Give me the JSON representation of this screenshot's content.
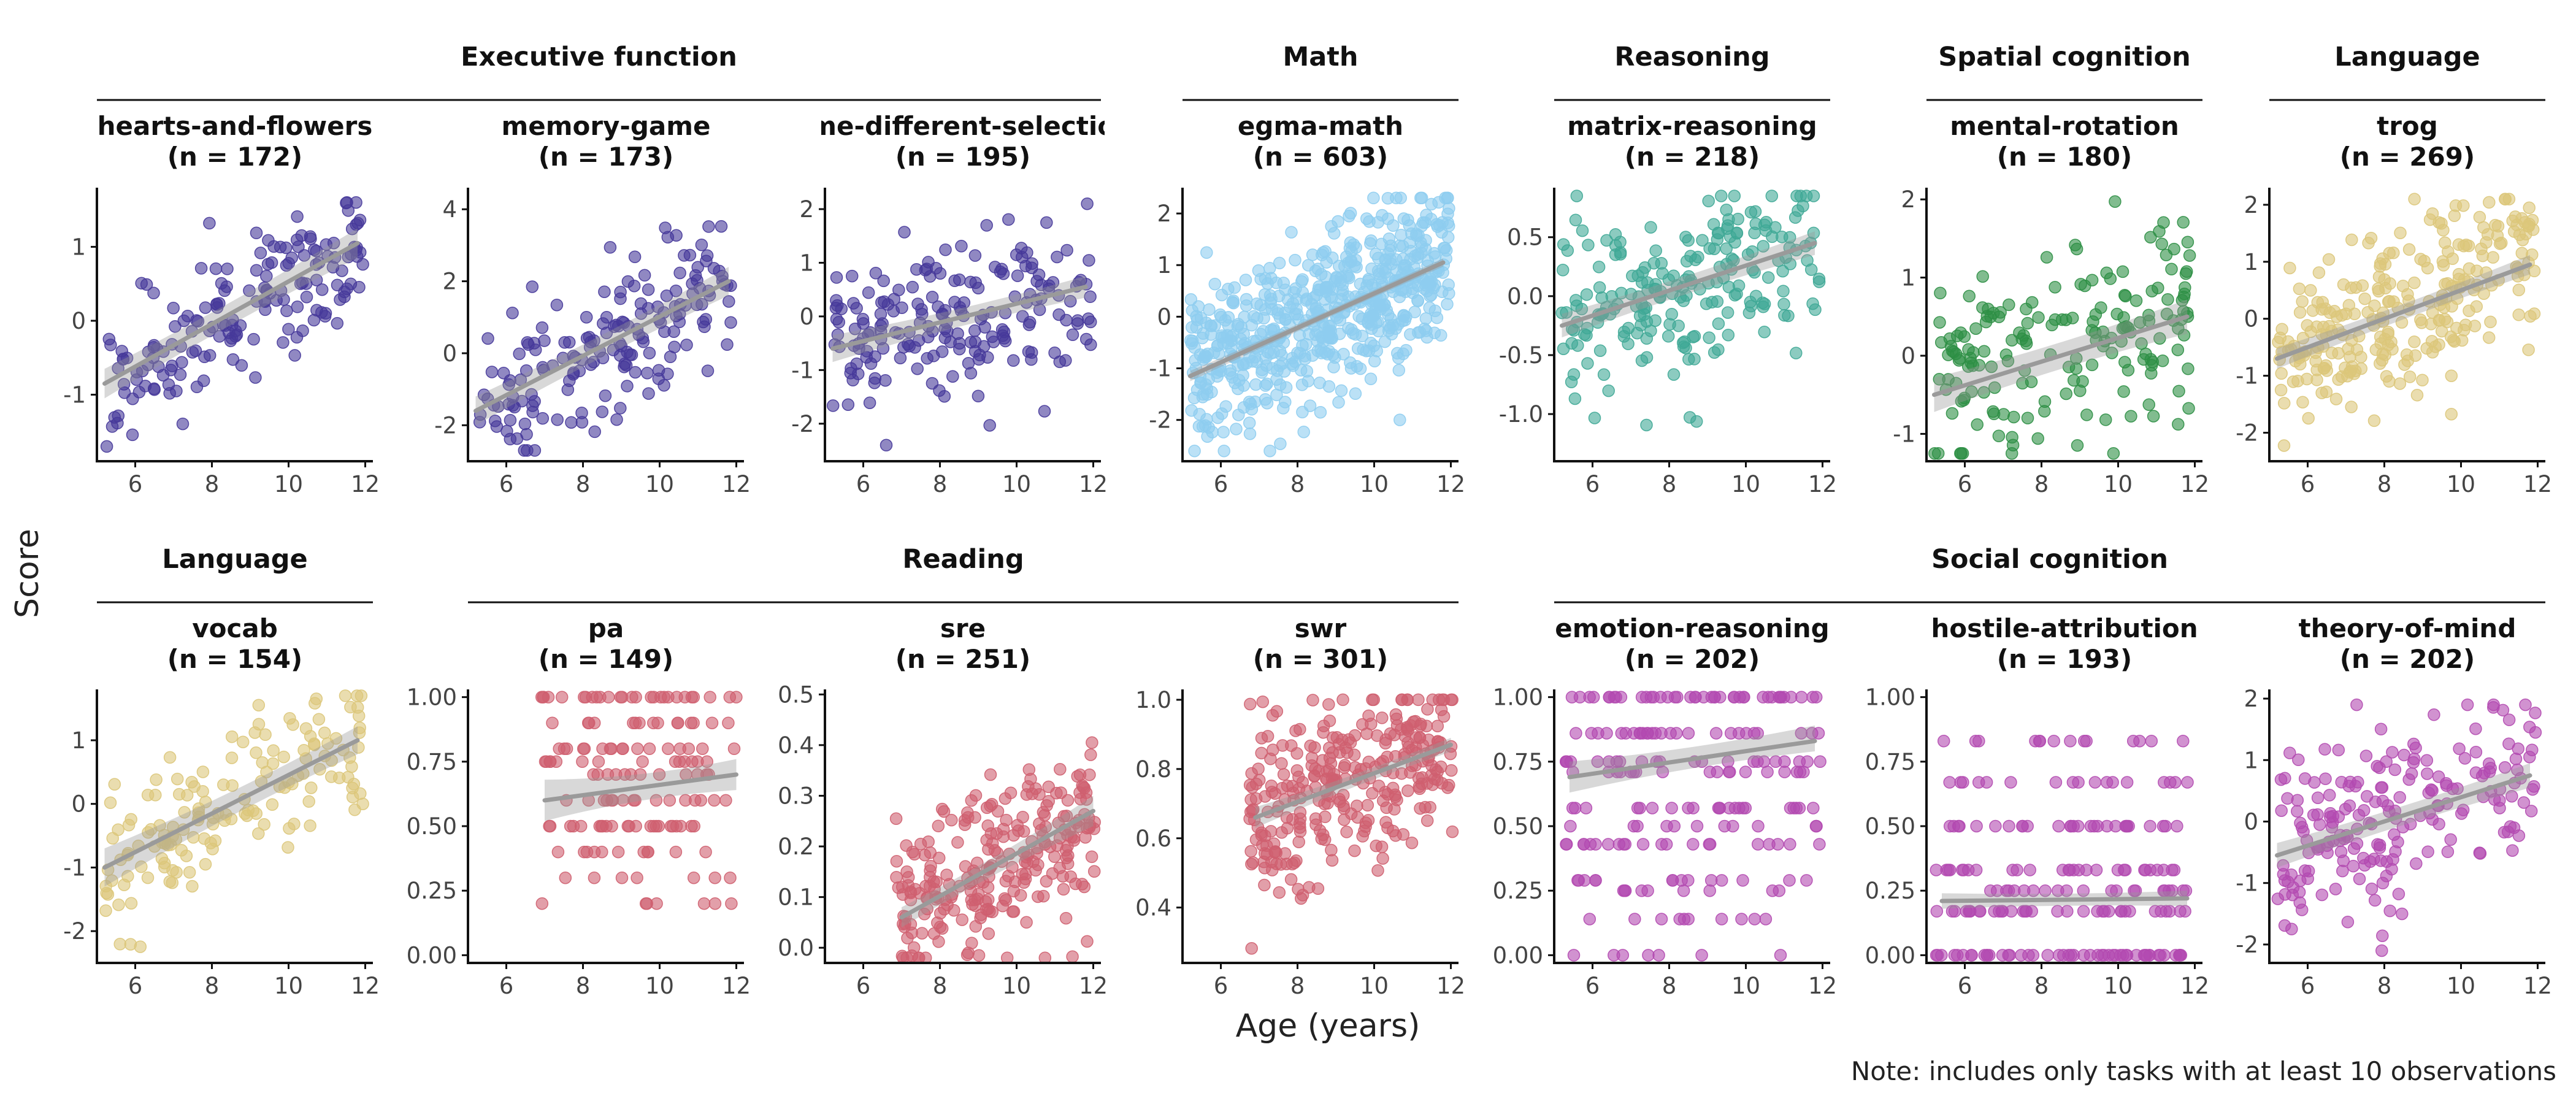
{
  "chart_data": {
    "type": "scatter",
    "xlabel": "Age (years)",
    "ylabel": "Score",
    "note": "Note: includes only tasks with at least 10 observations",
    "grid": false,
    "trend": "linear fit with confidence band",
    "colors": {
      "Executive function": "#46399a",
      "Math": "#8ecdf0",
      "Reasoning": "#3fa996",
      "Spatial cognition": "#2d8f45",
      "Language": "#dcc77a",
      "Reading": "#cf5f6f",
      "Social cognition": "#b34ab0",
      "fit": "#9a9a9a"
    },
    "groups": [
      {
        "row": 1,
        "label": "Executive function"
      },
      {
        "row": 1,
        "label": "Math"
      },
      {
        "row": 1,
        "label": "Reasoning"
      },
      {
        "row": 1,
        "label": "Spatial cognition"
      },
      {
        "row": 1,
        "label": "Language"
      },
      {
        "row": 2,
        "label": "Language"
      },
      {
        "row": 2,
        "label": "Reading"
      },
      {
        "row": 2,
        "label": "Social cognition"
      }
    ],
    "panels": [
      {
        "task": "hearts-and-flowers",
        "n_label": "(n = 172)",
        "n": 172,
        "group": "Executive function",
        "xlim": [
          5,
          12.2
        ],
        "ylim": [
          -1.9,
          1.8
        ],
        "yticks": [
          -1,
          0,
          1
        ],
        "yticklabels": [
          "-1",
          "0",
          "1"
        ],
        "xticks": [
          6,
          8,
          10,
          12
        ],
        "xticklabels": [
          "6",
          "8",
          "10",
          "12"
        ],
        "fit": {
          "x": [
            5.2,
            11.8
          ],
          "y": [
            -0.85,
            1.05
          ]
        },
        "band": {
          "lower": [
            -1.05,
            0.85
          ],
          "upper": [
            -0.65,
            1.25
          ]
        },
        "y_min": -1.7,
        "y_max": 1.6,
        "y_levels": null,
        "spread": 0.55
      },
      {
        "task": "memory-game",
        "n_label": "(n = 173)",
        "n": 173,
        "group": "Executive function",
        "xlim": [
          5,
          12.2
        ],
        "ylim": [
          -3.0,
          4.6
        ],
        "yticks": [
          -2,
          0,
          2,
          4
        ],
        "yticklabels": [
          "-2",
          "0",
          "2",
          "4"
        ],
        "xticks": [
          6,
          8,
          10,
          12
        ],
        "xticklabels": [
          "6",
          "8",
          "10",
          "12"
        ],
        "fit": {
          "x": [
            5.2,
            11.8
          ],
          "y": [
            -1.6,
            2.0
          ]
        },
        "band": {
          "lower": [
            -2.0,
            1.6
          ],
          "upper": [
            -1.2,
            2.4
          ]
        },
        "y_min": -2.7,
        "y_max": 4.2,
        "y_levels": null,
        "spread": 1.05
      },
      {
        "task": "ame-different-selection",
        "n_label": "(n = 195)",
        "n": 195,
        "group": "Executive function",
        "xlim": [
          5,
          12.2
        ],
        "ylim": [
          -2.7,
          2.4
        ],
        "yticks": [
          -2,
          -1,
          0,
          1,
          2
        ],
        "yticklabels": [
          "-2",
          "-1",
          "0",
          "1",
          "2"
        ],
        "xticks": [
          6,
          8,
          10,
          12
        ],
        "xticklabels": [
          "6",
          "8",
          "10",
          "12"
        ],
        "fit": {
          "x": [
            5.2,
            11.8
          ],
          "y": [
            -0.6,
            0.55
          ]
        },
        "band": {
          "lower": [
            -0.85,
            0.35
          ],
          "upper": [
            -0.35,
            0.75
          ]
        },
        "y_min": -2.4,
        "y_max": 2.1,
        "y_levels": null,
        "spread": 0.7
      },
      {
        "task": "egma-math",
        "n_label": "(n = 603)",
        "n": 603,
        "group": "Math",
        "xlim": [
          5,
          12.2
        ],
        "ylim": [
          -2.8,
          2.5
        ],
        "yticks": [
          -2,
          -1,
          0,
          1,
          2
        ],
        "yticklabels": [
          "-2",
          "-1",
          "0",
          "1",
          "2"
        ],
        "xticks": [
          6,
          8,
          10,
          12
        ],
        "xticklabels": [
          "6",
          "8",
          "10",
          "12"
        ],
        "fit": {
          "x": [
            5.2,
            11.8
          ],
          "y": [
            -1.15,
            1.05
          ]
        },
        "band": {
          "lower": [
            -1.25,
            0.97
          ],
          "upper": [
            -1.05,
            1.13
          ]
        },
        "y_min": -2.6,
        "y_max": 2.3,
        "y_levels": null,
        "spread": 0.75
      },
      {
        "task": "matrix-reasoning",
        "n_label": "(n = 218)",
        "n": 218,
        "group": "Reasoning",
        "xlim": [
          5,
          12.2
        ],
        "ylim": [
          -1.4,
          0.92
        ],
        "yticks": [
          -1.0,
          -0.5,
          0.0,
          0.5
        ],
        "yticklabels": [
          "-1.0",
          "-0.5",
          "0.0",
          "0.5"
        ],
        "xticks": [
          6,
          8,
          10,
          12
        ],
        "xticklabels": [
          "6",
          "8",
          "10",
          "12"
        ],
        "fit": {
          "x": [
            5.2,
            11.8
          ],
          "y": [
            -0.25,
            0.45
          ]
        },
        "band": {
          "lower": [
            -0.35,
            0.35
          ],
          "upper": [
            -0.15,
            0.55
          ]
        },
        "y_min": -1.25,
        "y_max": 0.85,
        "y_levels": null,
        "spread": 0.38
      },
      {
        "task": "mental-rotation",
        "n_label": "(n = 180)",
        "n": 180,
        "group": "Spatial cognition",
        "xlim": [
          5,
          12.2
        ],
        "ylim": [
          -1.35,
          2.15
        ],
        "yticks": [
          -1,
          0,
          1,
          2
        ],
        "yticklabels": [
          "-1",
          "0",
          "1",
          "2"
        ],
        "xticks": [
          6,
          8,
          10,
          12
        ],
        "xticklabels": [
          "6",
          "8",
          "10",
          "12"
        ],
        "fit": {
          "x": [
            5.2,
            11.8
          ],
          "y": [
            -0.5,
            0.5
          ]
        },
        "band": {
          "lower": [
            -0.72,
            0.28
          ],
          "upper": [
            -0.28,
            0.72
          ]
        },
        "y_min": -1.25,
        "y_max": 2.0,
        "y_levels": null,
        "spread": 0.6
      },
      {
        "task": "trog",
        "n_label": "(n = 269)",
        "n": 269,
        "group": "Language",
        "xlim": [
          5,
          12.2
        ],
        "ylim": [
          -2.5,
          2.3
        ],
        "yticks": [
          -2,
          -1,
          0,
          1,
          2
        ],
        "yticklabels": [
          "-2",
          "-1",
          "0",
          "1",
          "2"
        ],
        "xticks": [
          6,
          8,
          10,
          12
        ],
        "xticklabels": [
          "6",
          "8",
          "10",
          "12"
        ],
        "fit": {
          "x": [
            5.2,
            11.8
          ],
          "y": [
            -0.7,
            0.95
          ]
        },
        "band": {
          "lower": [
            -0.88,
            0.78
          ],
          "upper": [
            -0.52,
            1.12
          ]
        },
        "y_min": -2.4,
        "y_max": 2.1,
        "y_levels": null,
        "spread": 0.75
      },
      {
        "task": "vocab",
        "n_label": "(n = 154)",
        "n": 154,
        "group": "Language",
        "xlim": [
          5,
          12.2
        ],
        "ylim": [
          -2.5,
          1.8
        ],
        "yticks": [
          -2,
          -1,
          0,
          1
        ],
        "yticklabels": [
          "-2",
          "-1",
          "0",
          "1"
        ],
        "xticks": [
          6,
          8,
          10,
          12
        ],
        "xticklabels": [
          "6",
          "8",
          "10",
          "12"
        ],
        "fit": {
          "x": [
            5.2,
            11.8
          ],
          "y": [
            -1.0,
            1.0
          ]
        },
        "band": {
          "lower": [
            -1.3,
            0.78
          ],
          "upper": [
            -0.7,
            1.22
          ]
        },
        "y_min": -2.4,
        "y_max": 1.7,
        "y_levels": null,
        "spread": 0.6
      },
      {
        "task": "pa",
        "n_label": "(n = 149)",
        "n": 149,
        "group": "Reading",
        "xlim": [
          5,
          12.2
        ],
        "ylim": [
          -0.03,
          1.03
        ],
        "yticks": [
          0.0,
          0.25,
          0.5,
          0.75,
          1.0
        ],
        "yticklabels": [
          "0.00",
          "0.25",
          "0.50",
          "0.75",
          "1.00"
        ],
        "xticks": [
          6,
          8,
          10,
          12
        ],
        "xticklabels": [
          "6",
          "8",
          "10",
          "12"
        ],
        "fit": {
          "x": [
            7.0,
            12.0
          ],
          "y": [
            0.6,
            0.7
          ]
        },
        "band": {
          "lower": [
            0.52,
            0.64
          ],
          "upper": [
            0.68,
            0.76
          ]
        },
        "y_min": 0.0,
        "y_max": 1.0,
        "y_levels": [
          0.2,
          0.3,
          0.4,
          0.5,
          0.6,
          0.7,
          0.75,
          0.8,
          0.9,
          1.0
        ],
        "spread": 0.2
      },
      {
        "task": "sre",
        "n_label": "(n = 251)",
        "n": 251,
        "group": "Reading",
        "xlim": [
          5,
          12.2
        ],
        "ylim": [
          -0.03,
          0.51
        ],
        "yticks": [
          0.0,
          0.1,
          0.2,
          0.3,
          0.4,
          0.5
        ],
        "yticklabels": [
          "0.0",
          "0.1",
          "0.2",
          "0.3",
          "0.4",
          "0.5"
        ],
        "xticks": [
          6,
          8,
          10,
          12
        ],
        "xticklabels": [
          "6",
          "8",
          "10",
          "12"
        ],
        "fit": {
          "x": [
            7.0,
            12.0
          ],
          "y": [
            0.06,
            0.27
          ]
        },
        "band": {
          "lower": [
            0.04,
            0.24
          ],
          "upper": [
            0.08,
            0.3
          ]
        },
        "y_min": -0.02,
        "y_max": 0.49,
        "y_levels": null,
        "spread": 0.08
      },
      {
        "task": "swr",
        "n_label": "(n = 301)",
        "n": 301,
        "group": "Reading",
        "xlim": [
          5,
          12.2
        ],
        "ylim": [
          0.24,
          1.03
        ],
        "yticks": [
          0.4,
          0.6,
          0.8,
          1.0
        ],
        "yticklabels": [
          "0.4",
          "0.6",
          "0.8",
          "1.0"
        ],
        "xticks": [
          6,
          8,
          10,
          12
        ],
        "xticklabels": [
          "6",
          "8",
          "10",
          "12"
        ],
        "fit": {
          "x": [
            6.9,
            12.0
          ],
          "y": [
            0.66,
            0.87
          ]
        },
        "band": {
          "lower": [
            0.63,
            0.85
          ],
          "upper": [
            0.69,
            0.89
          ]
        },
        "y_min": 0.27,
        "y_max": 1.0,
        "y_levels": null,
        "spread": 0.13
      },
      {
        "task": "emotion-reasoning",
        "n_label": "(n = 202)",
        "n": 202,
        "group": "Social cognition",
        "xlim": [
          5,
          12.2
        ],
        "ylim": [
          -0.03,
          1.03
        ],
        "yticks": [
          0.0,
          0.25,
          0.5,
          0.75,
          1.0
        ],
        "yticklabels": [
          "0.00",
          "0.25",
          "0.50",
          "0.75",
          "1.00"
        ],
        "xticks": [
          6,
          8,
          10,
          12
        ],
        "xticklabels": [
          "6",
          "8",
          "10",
          "12"
        ],
        "fit": {
          "x": [
            5.4,
            11.8
          ],
          "y": [
            0.69,
            0.83
          ]
        },
        "band": {
          "lower": [
            0.63,
            0.79
          ],
          "upper": [
            0.75,
            0.89
          ]
        },
        "y_min": 0.0,
        "y_max": 1.0,
        "y_levels": [
          0.0,
          0.14,
          0.25,
          0.29,
          0.43,
          0.5,
          0.57,
          0.71,
          0.75,
          0.86,
          1.0
        ],
        "spread": 0.0
      },
      {
        "task": "hostile-attribution",
        "n_label": "(n = 193)",
        "n": 193,
        "group": "Social cognition",
        "xlim": [
          5,
          12.2
        ],
        "ylim": [
          -0.03,
          1.03
        ],
        "yticks": [
          0.0,
          0.25,
          0.5,
          0.75,
          1.0
        ],
        "yticklabels": [
          "0.00",
          "0.25",
          "0.50",
          "0.75",
          "1.00"
        ],
        "xticks": [
          6,
          8,
          10,
          12
        ],
        "xticklabels": [
          "6",
          "8",
          "10",
          "12"
        ],
        "fit": {
          "x": [
            5.4,
            11.8
          ],
          "y": [
            0.21,
            0.22
          ]
        },
        "band": {
          "lower": [
            0.18,
            0.19
          ],
          "upper": [
            0.24,
            0.25
          ]
        },
        "y_min": 0.0,
        "y_max": 0.85,
        "y_levels": [
          0.0,
          0.17,
          0.25,
          0.33,
          0.5,
          0.67,
          0.83
        ],
        "spread": 0.0
      },
      {
        "task": "theory-of-mind",
        "n_label": "(n = 202)",
        "n": 202,
        "group": "Social cognition",
        "xlim": [
          5,
          12.2
        ],
        "ylim": [
          -2.3,
          2.15
        ],
        "yticks": [
          -2,
          -1,
          0,
          1,
          2
        ],
        "yticklabels": [
          "-2",
          "-1",
          "0",
          "1",
          "2"
        ],
        "xticks": [
          6,
          8,
          10,
          12
        ],
        "xticklabels": [
          "6",
          "8",
          "10",
          "12"
        ],
        "fit": {
          "x": [
            5.2,
            11.8
          ],
          "y": [
            -0.55,
            0.75
          ]
        },
        "band": {
          "lower": [
            -0.75,
            0.55
          ],
          "upper": [
            -0.35,
            0.95
          ]
        },
        "y_min": -2.1,
        "y_max": 1.9,
        "y_levels": null,
        "spread": 0.7
      }
    ]
  }
}
